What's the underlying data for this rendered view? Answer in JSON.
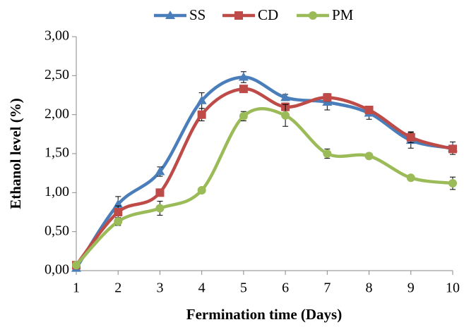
{
  "chart_data": {
    "type": "line",
    "x_label": "Fermination time (Days)",
    "y_label": "Ethanol level (%)",
    "x": [
      1,
      2,
      3,
      4,
      5,
      6,
      7,
      8,
      9,
      10
    ],
    "xlim": [
      1,
      10
    ],
    "xticks": [
      1,
      2,
      3,
      4,
      5,
      6,
      7,
      8,
      9,
      10
    ],
    "ylim": [
      0,
      3
    ],
    "yticks": [
      {
        "value": 0,
        "label": "0,00"
      },
      {
        "value": 0.5,
        "label": "0,50"
      },
      {
        "value": 1,
        "label": "1,00"
      },
      {
        "value": 1.5,
        "label": "1,50"
      },
      {
        "value": 2,
        "label": "2,00"
      },
      {
        "value": 2.5,
        "label": "2,50"
      },
      {
        "value": 3,
        "label": "3,00"
      }
    ],
    "grid": false,
    "legend": "top",
    "series": [
      {
        "name": "SS",
        "color": "#4a7ebb",
        "marker": "triangle",
        "values": [
          0.03,
          0.85,
          1.27,
          2.18,
          2.48,
          2.22,
          2.16,
          2.02,
          1.67,
          1.57
        ],
        "errors": [
          0.02,
          0.1,
          0.06,
          0.1,
          0.07,
          0.04,
          0.1,
          0.08,
          0.1,
          0.08
        ]
      },
      {
        "name": "CD",
        "color": "#be4b48",
        "marker": "square",
        "values": [
          0.07,
          0.75,
          1.0,
          2.0,
          2.33,
          2.1,
          2.22,
          2.06,
          1.71,
          1.56
        ],
        "errors": [
          0.02,
          0.08,
          0.04,
          0.08,
          0.04,
          0.05,
          0.05,
          0.05,
          0.07,
          0.04
        ]
      },
      {
        "name": "PM",
        "color": "#9bbb59",
        "marker": "circle",
        "values": [
          0.07,
          0.63,
          0.8,
          1.03,
          1.98,
          1.99,
          1.5,
          1.47,
          1.19,
          1.12
        ],
        "errors": [
          0.02,
          0.05,
          0.09,
          0.03,
          0.06,
          0.14,
          0.06,
          0.03,
          0.03,
          0.08
        ]
      }
    ]
  }
}
